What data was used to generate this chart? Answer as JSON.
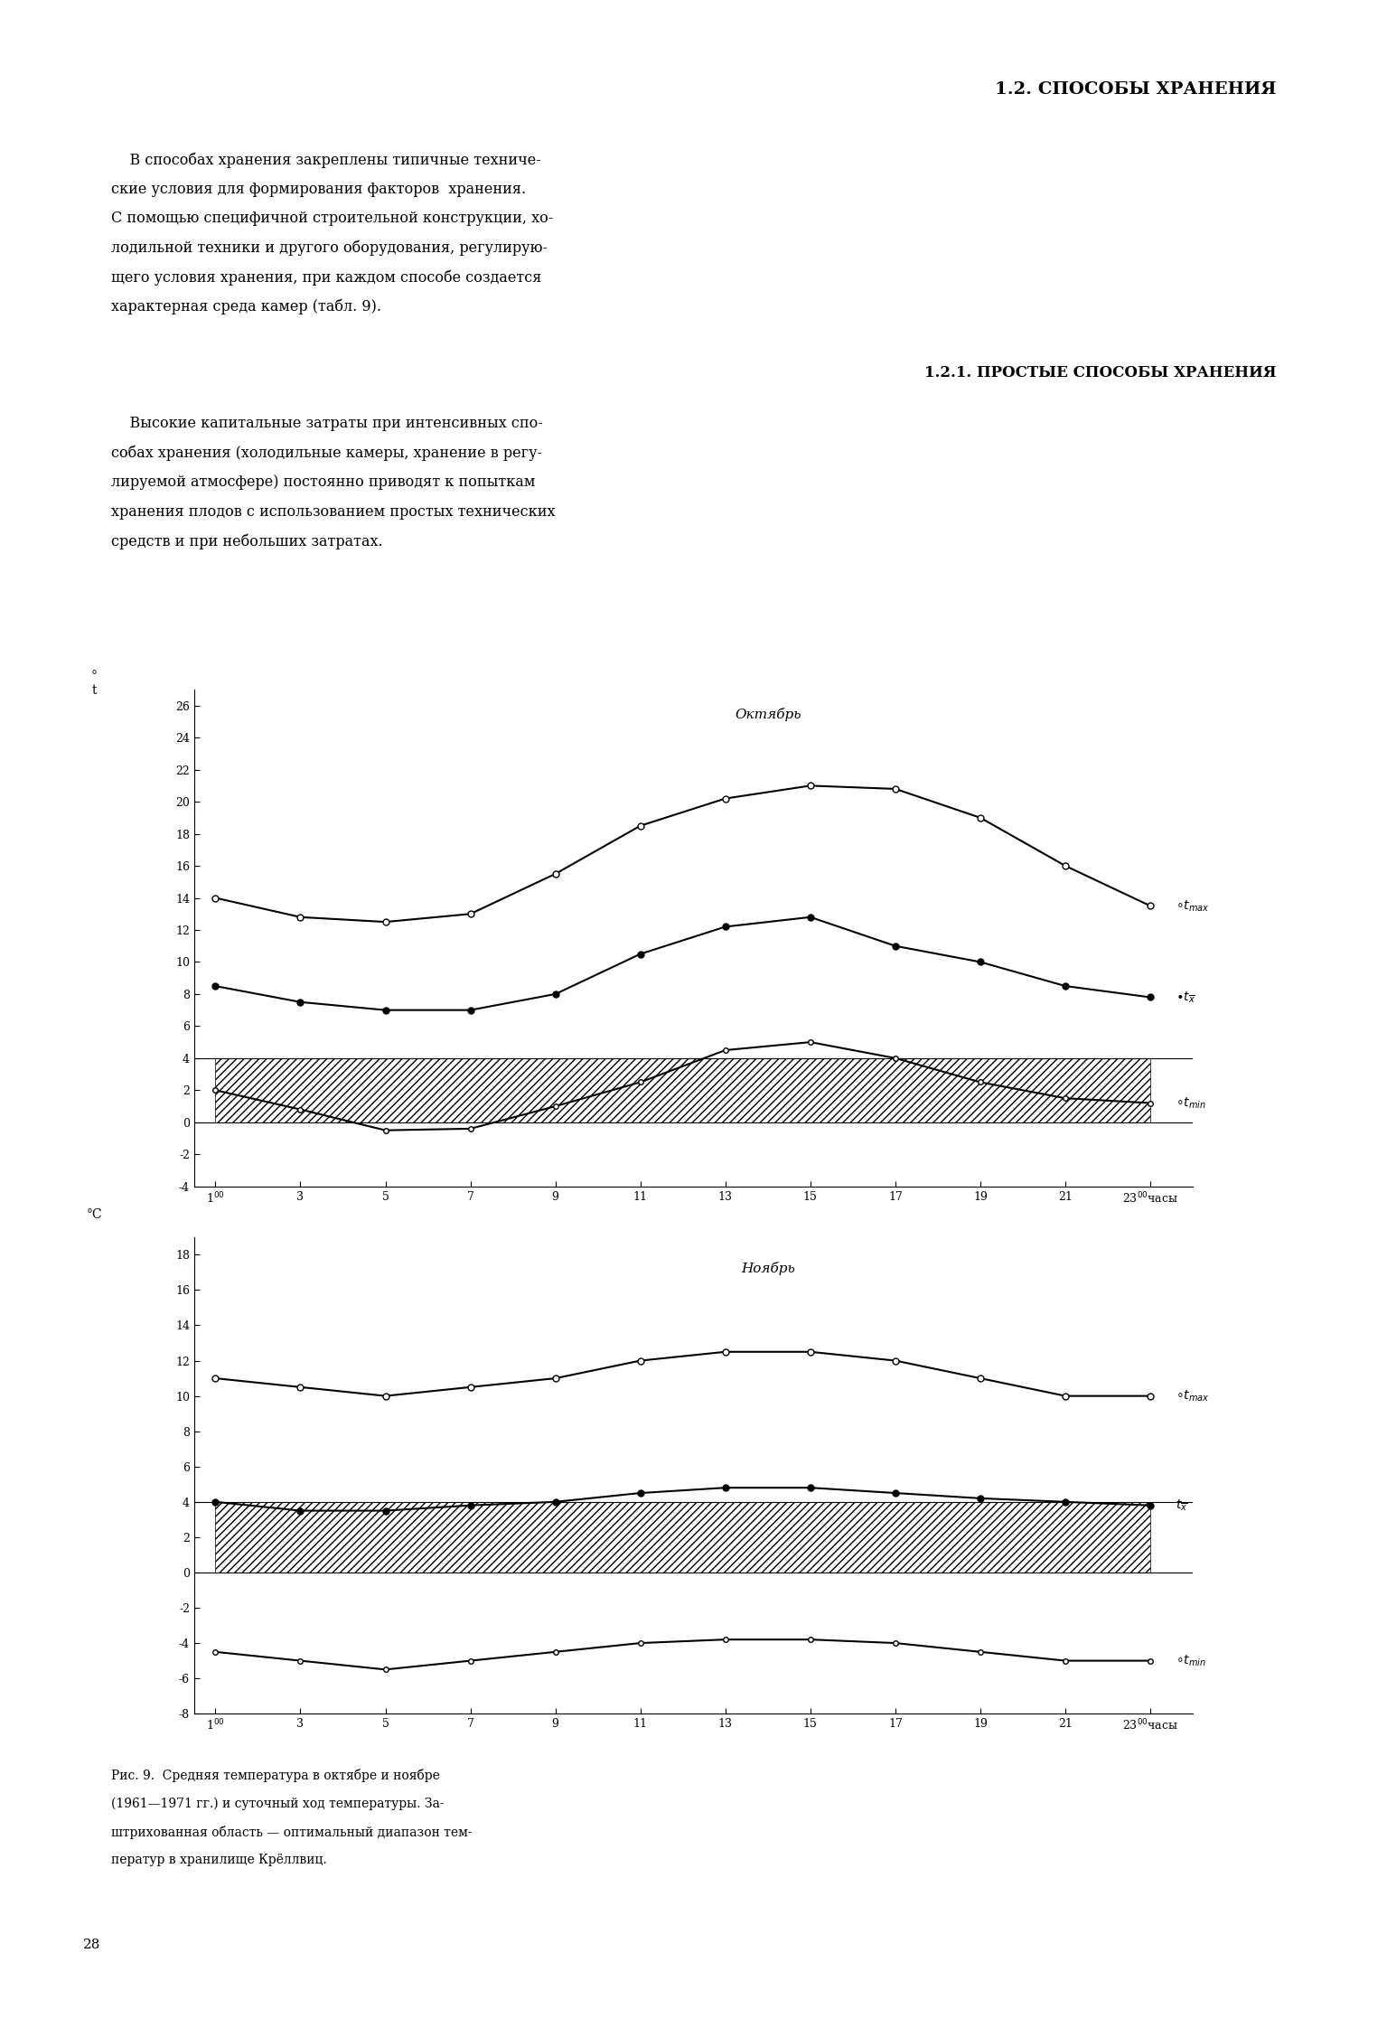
{
  "page_title1": "1.2. СПОСОБЫ ХРАНЕНИЯ",
  "page_title2": "1.2.1. ПРОСТЫЕ СПОСОБЫ ХРАНЕНИЯ",
  "page_number": "28",
  "oct_title": "Октябрь",
  "nov_title": "Ноябрь",
  "hours": [
    1,
    3,
    5,
    7,
    9,
    11,
    13,
    15,
    17,
    19,
    21,
    23
  ],
  "oct_tmax": [
    14.0,
    12.8,
    12.5,
    13.0,
    15.5,
    18.5,
    20.2,
    21.0,
    20.8,
    19.0,
    16.0,
    13.5
  ],
  "oct_tx": [
    8.5,
    7.5,
    7.0,
    7.0,
    8.0,
    10.5,
    12.2,
    12.8,
    11.0,
    10.0,
    8.5,
    7.8
  ],
  "oct_tmin": [
    2.0,
    0.8,
    -0.5,
    -0.4,
    1.0,
    2.5,
    4.5,
    5.0,
    4.0,
    2.5,
    1.5,
    1.2
  ],
  "nov_tmax": [
    11.0,
    10.5,
    10.0,
    10.5,
    11.0,
    12.0,
    12.5,
    12.5,
    12.0,
    11.0,
    10.0,
    10.0
  ],
  "nov_tx": [
    4.0,
    3.5,
    3.5,
    3.8,
    4.0,
    4.5,
    4.8,
    4.8,
    4.5,
    4.2,
    4.0,
    3.8
  ],
  "nov_tmin": [
    -4.5,
    -5.0,
    -5.5,
    -5.0,
    -4.5,
    -4.0,
    -3.8,
    -3.8,
    -4.0,
    -4.5,
    -5.0,
    -5.0
  ],
  "oct_ylim": [
    -4,
    27
  ],
  "oct_yticks": [
    -4,
    -2,
    0,
    2,
    4,
    6,
    8,
    10,
    12,
    14,
    16,
    18,
    20,
    22,
    24,
    26
  ],
  "nov_ylim": [
    -8,
    19
  ],
  "nov_yticks": [
    -8,
    -6,
    -4,
    -2,
    0,
    2,
    4,
    6,
    8,
    10,
    12,
    14,
    16,
    18
  ],
  "opt_low": 0,
  "opt_high": 4,
  "xticks": [
    1,
    3,
    5,
    7,
    9,
    11,
    13,
    15,
    17,
    19,
    21,
    23
  ],
  "bg_color": "#ffffff"
}
